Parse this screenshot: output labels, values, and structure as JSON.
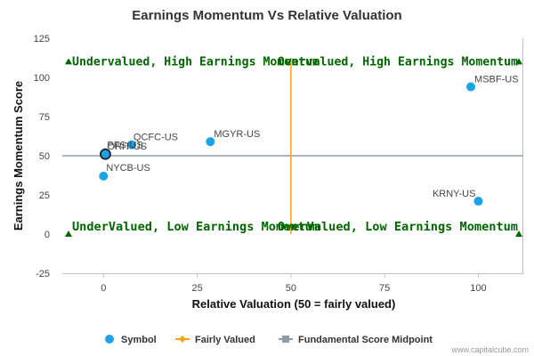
{
  "chart_data": {
    "type": "scatter",
    "title": "Earnings Momentum Vs Relative Valuation",
    "xlabel": "Relative Valuation (50 = fairly valued)",
    "ylabel": "Earnings Momentum Score",
    "xlim": [
      -11,
      112
    ],
    "ylim": [
      -25,
      125
    ],
    "x_ticks": [
      0,
      25,
      50,
      75,
      100
    ],
    "y_ticks": [
      -25,
      0,
      25,
      50,
      75,
      100,
      125
    ],
    "grid": false,
    "legend_position": "bottom",
    "colors": {
      "symbol": "#1aa3e8",
      "fairly_valued": "#f7a21b",
      "midpoint": "#8c9cab",
      "quadrant_text": "#006600",
      "highlight_ring": "#222222"
    },
    "series": [
      {
        "name": "Symbol",
        "points": [
          {
            "label": "MSBF-US",
            "x": 98,
            "y": 94
          },
          {
            "label": "MGYR-US",
            "x": 28.5,
            "y": 59
          },
          {
            "label": "QCFC-US",
            "x": 7.5,
            "y": 57
          },
          {
            "label": "PFS-US",
            "x": 0.5,
            "y": 52
          },
          {
            "label": "ORIT-US",
            "x": 0.5,
            "y": 51
          },
          {
            "label": "NYCB-US",
            "x": 0,
            "y": 37
          },
          {
            "label": "KRNY-US",
            "x": 100,
            "y": 21
          }
        ],
        "highlighted": "ORIT-US"
      },
      {
        "name": "Fairly Valued",
        "x": 50
      },
      {
        "name": "Fundamental Score Midpoint",
        "y": 50
      }
    ],
    "quadrants": {
      "top_left": "Undervalued, High Earnings Momentum",
      "top_right": "Overvalued, High Earnings Momentum",
      "bottom_left": "UnderValued, Low Earnings Momentum",
      "bottom_right": "OverValued, Low Earnings Momentum"
    },
    "credit": "www.capitalcube.com"
  }
}
